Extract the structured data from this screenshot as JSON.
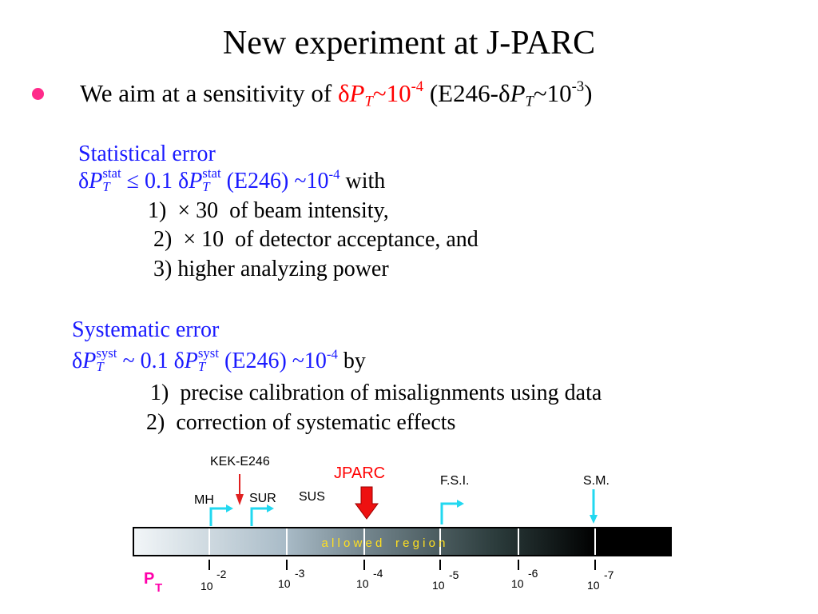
{
  "title": "New experiment at J-PARC",
  "bullet": [
    "We aim at a sensitivity of ",
    "δ",
    "P",
    "T",
    "~10",
    "-4",
    " (E246-δ",
    "P",
    "T",
    "~10",
    "-3",
    ")"
  ],
  "statistical": {
    "heading": "Statistical error",
    "formula": [
      "δ",
      "P",
      "T",
      "stat",
      " ≤  0.1 δ",
      "P",
      "T",
      "stat",
      " (E246) ~10",
      "-4",
      " with"
    ],
    "items": [
      "1)  × 30  of beam intensity,",
      "2)  × 10  of detector acceptance, and",
      "3) higher analyzing power"
    ]
  },
  "systematic": {
    "heading": "Systematic error",
    "formula": [
      "δ",
      "P",
      "T",
      "syst",
      " ~ 0.1 δ",
      "P",
      "T",
      "syst",
      " (E246) ~10",
      "-4",
      " by"
    ],
    "items": [
      "1)  precise calibration of misalignments using data",
      "2)  correction of systematic effects"
    ]
  },
  "scale": {
    "kek": "KEK-E246",
    "jparc": "JPARC",
    "mh": "MH",
    "sur": "SUR",
    "sus": "SUS",
    "fsi": "F.S.I.",
    "sm": "S.M.",
    "allowed": "a l l o w e d    r e g i o n",
    "pt": [
      "P",
      "T"
    ],
    "ticks": [
      {
        "base": "10",
        "exp": "-2"
      },
      {
        "base": "10",
        "exp": "-3"
      },
      {
        "base": "10",
        "exp": "-4"
      },
      {
        "base": "10",
        "exp": "-5"
      },
      {
        "base": "10",
        "exp": "-6"
      },
      {
        "base": "10",
        "exp": "-7"
      }
    ]
  }
}
